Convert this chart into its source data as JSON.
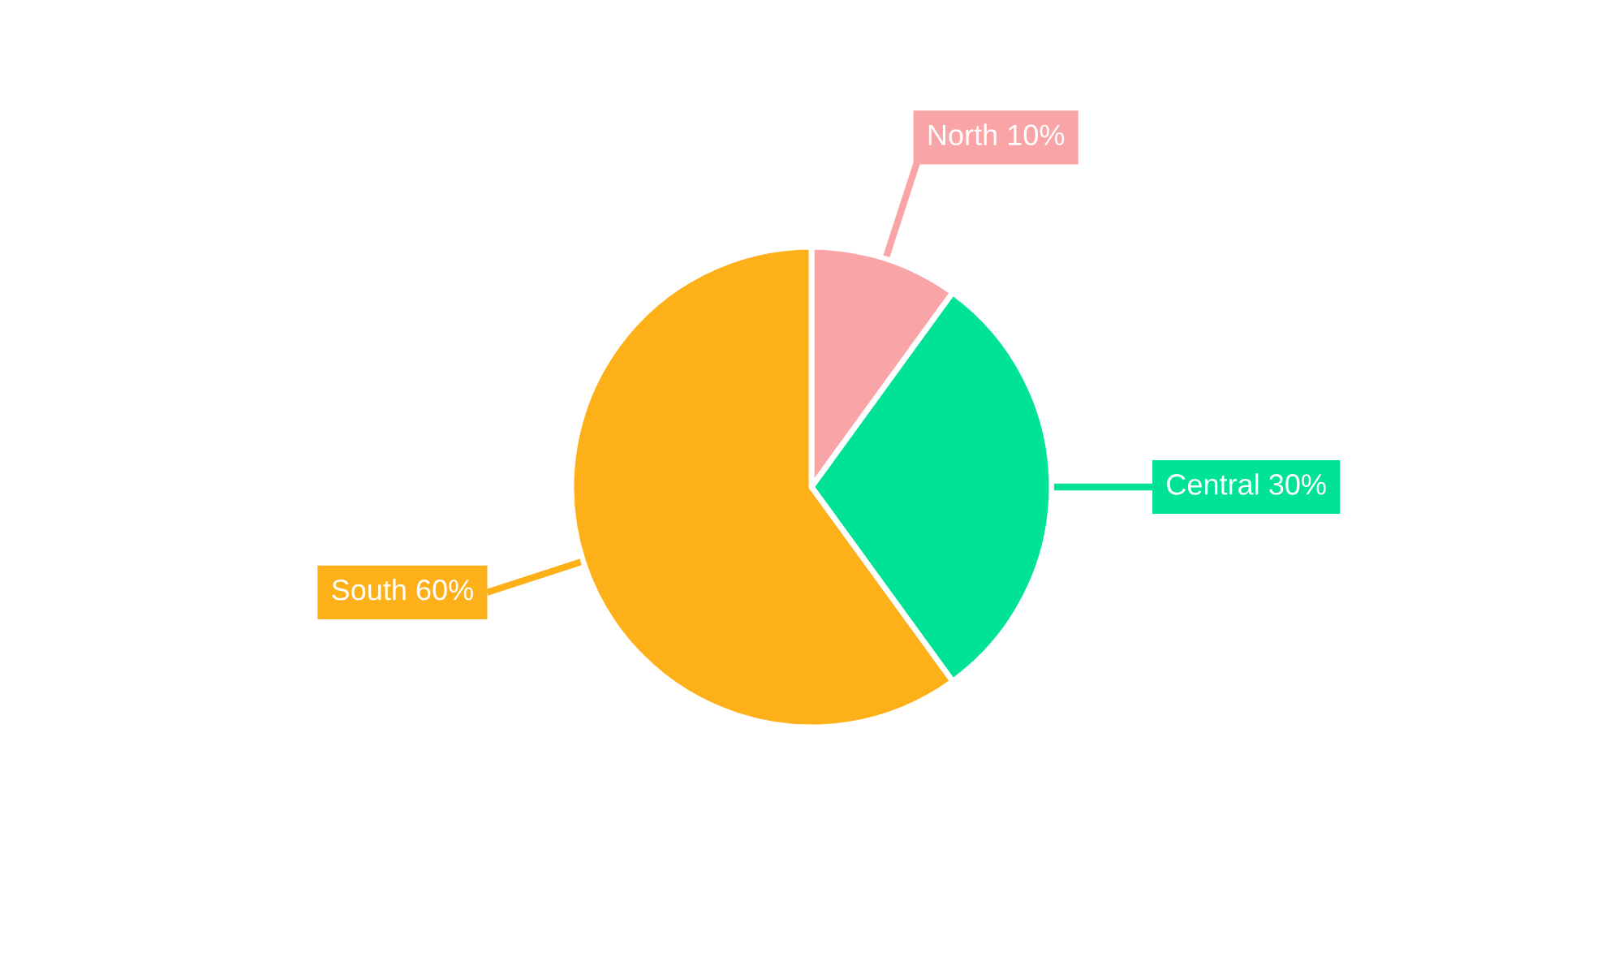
{
  "chart_data": {
    "type": "pie",
    "categories": [
      "North",
      "Central",
      "South"
    ],
    "values": [
      10,
      30,
      60
    ],
    "colors": [
      "#f9a5a8",
      "#00e396",
      "#feb019"
    ],
    "value_labels": [
      "10%",
      "30%",
      "60%"
    ],
    "legend": false
  }
}
